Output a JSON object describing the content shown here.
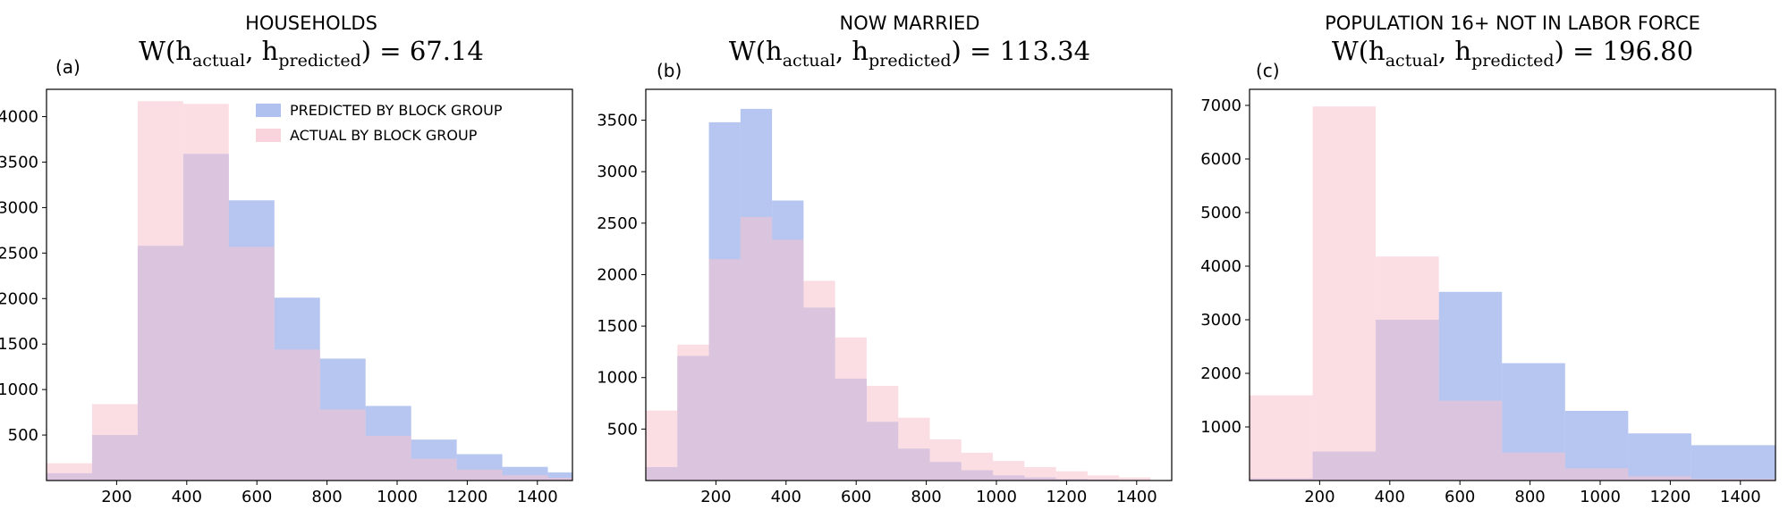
{
  "colors": {
    "predicted": "#7b98e6",
    "actual": "#f7c2cd",
    "predicted_opacity": 0.55,
    "actual_opacity": 0.55
  },
  "chart_data": [
    {
      "type": "bar",
      "panel_label": "(a)",
      "title": "HOUSEHOLDS",
      "formula": {
        "prefix": "W(h",
        "sub1": "actual",
        "mid": ", h",
        "sub2": "predicted",
        "suffix": ") = 67.14"
      },
      "xlim": [
        0,
        1500
      ],
      "ylim": [
        0,
        4300
      ],
      "xticks": [
        200,
        400,
        600,
        800,
        1000,
        1200,
        1400
      ],
      "yticks": [
        500,
        1000,
        1500,
        2000,
        2500,
        3000,
        3500,
        4000
      ],
      "legend": {
        "position": "top-right",
        "entries": [
          "PREDICTED BY BLOCK GROUP",
          "ACTUAL BY BLOCK GROUP"
        ]
      },
      "series": [
        {
          "name": "PREDICTED BY BLOCK GROUP",
          "bins": [
            0,
            130,
            260,
            390,
            520,
            650,
            780,
            910,
            1040,
            1170,
            1300,
            1430,
            1500
          ],
          "values": [
            80,
            500,
            2580,
            3590,
            3080,
            2010,
            1340,
            820,
            450,
            290,
            150,
            90
          ]
        },
        {
          "name": "ACTUAL BY BLOCK GROUP",
          "bins": [
            0,
            130,
            260,
            390,
            520,
            650,
            780,
            910,
            1040,
            1170,
            1300,
            1430,
            1500
          ],
          "values": [
            190,
            840,
            4170,
            4140,
            2570,
            1440,
            780,
            490,
            240,
            120,
            60,
            30
          ]
        }
      ]
    },
    {
      "type": "bar",
      "panel_label": "(b)",
      "title": "NOW MARRIED",
      "formula": {
        "prefix": "W(h",
        "sub1": "actual",
        "mid": ", h",
        "sub2": "predicted",
        "suffix": ") = 113.34"
      },
      "xlim": [
        0,
        1500
      ],
      "ylim": [
        0,
        3800
      ],
      "xticks": [
        200,
        400,
        600,
        800,
        1000,
        1200,
        1400
      ],
      "yticks": [
        500,
        1000,
        1500,
        2000,
        2500,
        3000,
        3500
      ],
      "series": [
        {
          "name": "PREDICTED BY BLOCK GROUP",
          "bins": [
            0,
            90,
            180,
            270,
            360,
            450,
            540,
            630,
            720,
            810,
            900,
            990,
            1080,
            1170,
            1260,
            1350,
            1440
          ],
          "values": [
            130,
            1210,
            3480,
            3610,
            2720,
            1680,
            990,
            570,
            310,
            180,
            100,
            50,
            30,
            15,
            10,
            5
          ]
        },
        {
          "name": "ACTUAL BY BLOCK GROUP",
          "bins": [
            0,
            90,
            180,
            270,
            360,
            450,
            540,
            630,
            720,
            810,
            900,
            990,
            1080,
            1170,
            1260,
            1350,
            1440
          ],
          "values": [
            680,
            1320,
            2150,
            2560,
            2340,
            1940,
            1390,
            920,
            610,
            400,
            270,
            190,
            130,
            90,
            50,
            30
          ]
        }
      ]
    },
    {
      "type": "bar",
      "panel_label": "(c)",
      "title": "POPULATION 16+ NOT IN LABOR FORCE",
      "formula": {
        "prefix": "W(h",
        "sub1": "actual",
        "mid": ", h",
        "sub2": "predicted",
        "suffix": ") = 196.80"
      },
      "xlim": [
        0,
        1500
      ],
      "ylim": [
        0,
        7300
      ],
      "xticks": [
        200,
        400,
        600,
        800,
        1000,
        1200,
        1400
      ],
      "yticks": [
        1000,
        2000,
        3000,
        4000,
        5000,
        6000,
        7000
      ],
      "series": [
        {
          "name": "PREDICTED BY BLOCK GROUP",
          "bins": [
            0,
            180,
            360,
            540,
            720,
            900,
            1080,
            1260,
            1500
          ],
          "values": [
            40,
            540,
            3000,
            3520,
            2190,
            1300,
            880,
            660
          ]
        },
        {
          "name": "ACTUAL BY BLOCK GROUP",
          "bins": [
            0,
            180,
            360,
            540,
            720,
            900,
            1080,
            1260,
            1500
          ],
          "values": [
            1590,
            6980,
            4180,
            1490,
            520,
            230,
            80,
            30
          ]
        }
      ]
    }
  ]
}
